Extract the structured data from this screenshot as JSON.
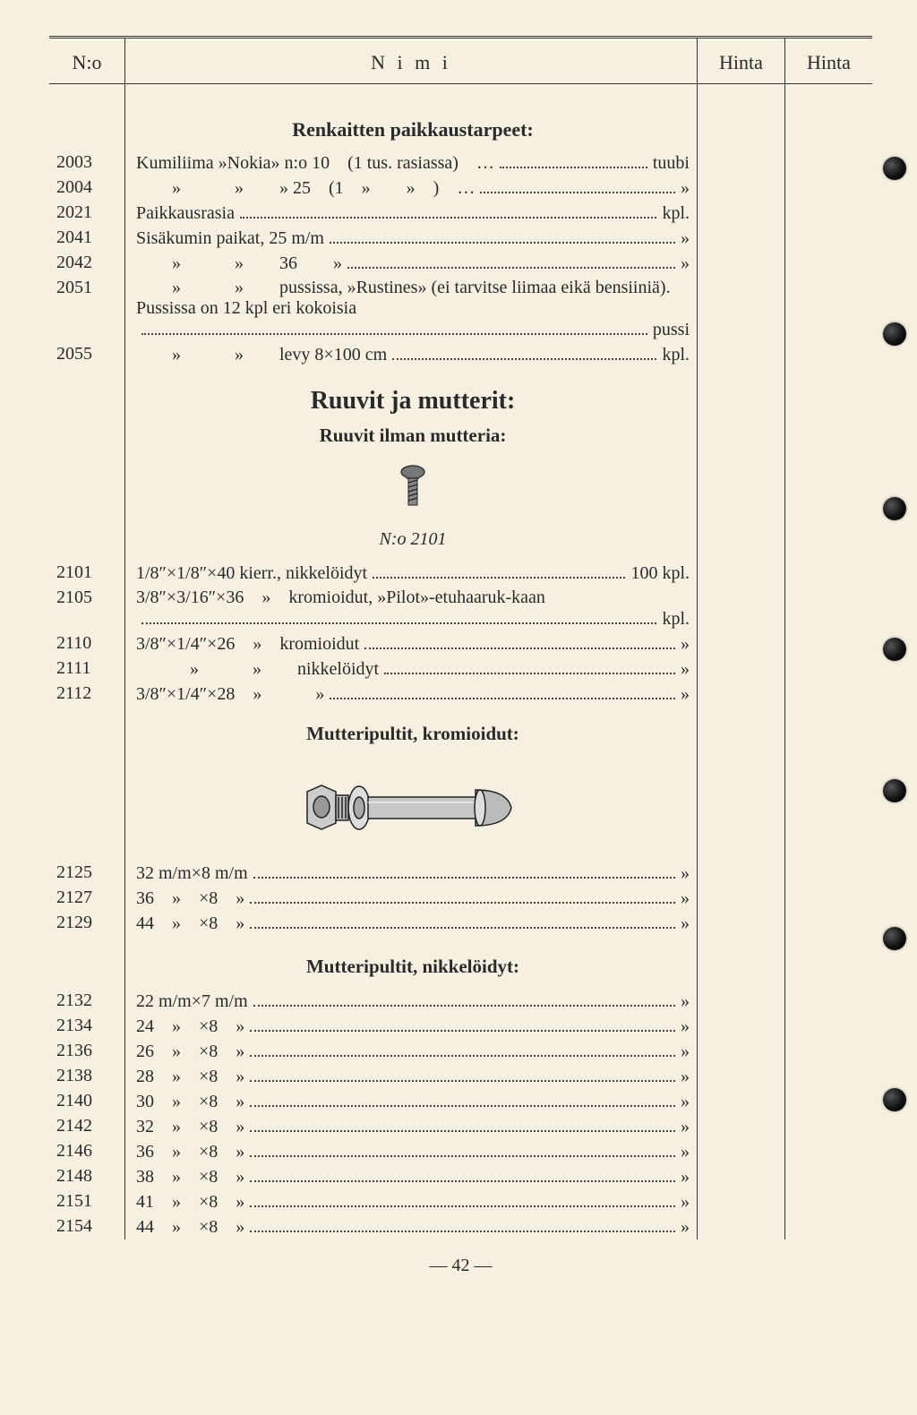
{
  "header": {
    "no": "N:o",
    "nimi": "N i m i",
    "hinta": "Hinta"
  },
  "section1_title": "Renkaitten paikkaustarpeet:",
  "rows1": [
    {
      "no": "2003",
      "text": "Kumiliima »Nokia» n:o 10 (1 tus. rasiassa) …",
      "unit": "tuubi"
    },
    {
      "no": "2004",
      "text": "  »   »  » 25 (1 »  » ) …",
      "unit": "»"
    },
    {
      "no": "2021",
      "text": "Paikkausrasia",
      "unit": "kpl."
    },
    {
      "no": "2041",
      "text": "Sisäkumin paikat, 25 m/m",
      "unit": "»"
    },
    {
      "no": "2042",
      "text": "  »   »  36  »",
      "unit": "»"
    },
    {
      "no": "2051",
      "text": "  »   »  pussissa, »Rustines» (ei tarvitse liimaa eikä bensiiniä). Pussissa on 12 kpl eri kokoisia",
      "unit": "pussi",
      "wrap": true
    },
    {
      "no": "2055",
      "text": "  »   »  levy 8×100 cm",
      "unit": "kpl."
    }
  ],
  "big_title": "Ruuvit ja mutterit:",
  "sub_title1": "Ruuvit ilman mutteria:",
  "fig_label": "N:o 2101",
  "rows2": [
    {
      "no": "2101",
      "text": "1/8″×1/8″×40 kierr., nikkelöidyt",
      "unit": "100 kpl."
    },
    {
      "no": "2105",
      "text": "3/8″×3/16″×36 » kromioidut, »Pilot»-etuhaaruk-kaan",
      "unit": "kpl.",
      "wrap": true
    },
    {
      "no": "2110",
      "text": "3/8″×1/4″×26 » kromioidut",
      "unit": "»"
    },
    {
      "no": "2111",
      "text": "   »   »  nikkelöidyt",
      "unit": "»"
    },
    {
      "no": "2112",
      "text": "3/8″×1/4″×28 »   »",
      "unit": "»"
    }
  ],
  "sub_title2": "Mutteripultit, kromioidut:",
  "rows3": [
    {
      "no": "2125",
      "text": "32 m/m×8 m/m",
      "unit": "»"
    },
    {
      "no": "2127",
      "text": "36 » ×8 »",
      "unit": "»"
    },
    {
      "no": "2129",
      "text": "44 » ×8 »",
      "unit": "»"
    }
  ],
  "sub_title3": "Mutteripultit, nikkelöidyt:",
  "rows4": [
    {
      "no": "2132",
      "text": "22 m/m×7 m/m",
      "unit": "»"
    },
    {
      "no": "2134",
      "text": "24 » ×8 »",
      "unit": "»"
    },
    {
      "no": "2136",
      "text": "26 » ×8 »",
      "unit": "»"
    },
    {
      "no": "2138",
      "text": "28 » ×8 »",
      "unit": "»"
    },
    {
      "no": "2140",
      "text": "30 » ×8 »",
      "unit": "»"
    },
    {
      "no": "2142",
      "text": "32 » ×8 »",
      "unit": "»"
    },
    {
      "no": "2146",
      "text": "36 » ×8 »",
      "unit": "»"
    },
    {
      "no": "2148",
      "text": "38 » ×8 »",
      "unit": "»"
    },
    {
      "no": "2151",
      "text": "41 » ×8 »",
      "unit": "»"
    },
    {
      "no": "2154",
      "text": "44 » ×8 »",
      "unit": "»"
    }
  ],
  "page_number": "— 42 —",
  "hole_positions": [
    175,
    360,
    555,
    712,
    870,
    1035,
    1215
  ],
  "colors": {
    "page_bg": "#f5f0e1",
    "text": "#2a2a2a",
    "rule": "#333333"
  }
}
